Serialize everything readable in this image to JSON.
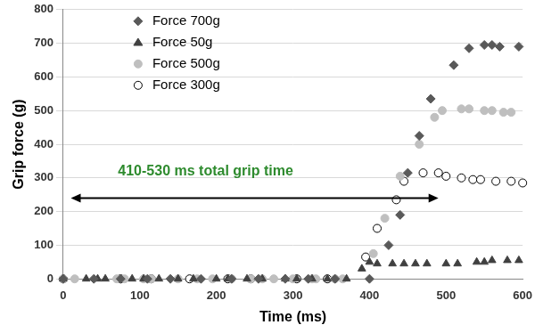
{
  "chart_data": {
    "type": "scatter",
    "x_label": "Time (ms)",
    "y_label": "Grip force (g)",
    "xlim": [
      0,
      600
    ],
    "xticks": [
      0,
      100,
      200,
      300,
      400,
      500,
      600
    ],
    "ylim": [
      0,
      800
    ],
    "yticks": [
      0,
      100,
      200,
      300,
      400,
      500,
      600,
      700,
      800
    ],
    "grid": true,
    "legend": "upper left",
    "annotations": [
      {
        "text": "410-530 ms total grip time",
        "x": [
          10,
          490
        ],
        "y": 240,
        "color": "#2e8b2e"
      }
    ],
    "series": [
      {
        "name": "Force 700g",
        "color": "#595959",
        "marker": "diamond",
        "x": [
          0,
          40,
          75,
          110,
          140,
          180,
          220,
          255,
          290,
          320,
          355,
          400,
          425,
          440,
          450,
          465,
          480,
          510,
          530,
          550,
          560,
          570,
          595
        ],
        "values": [
          0,
          0,
          0,
          0,
          0,
          0,
          0,
          0,
          0,
          0,
          0,
          0,
          100,
          190,
          315,
          425,
          535,
          635,
          685,
          695,
          695,
          690,
          690
        ]
      },
      {
        "name": "Force 50g",
        "color": "#404040",
        "marker": "triangle",
        "x": [
          0,
          30,
          45,
          55,
          90,
          105,
          125,
          150,
          170,
          200,
          215,
          240,
          260,
          290,
          305,
          325,
          345,
          370,
          390,
          400,
          410,
          430,
          445,
          460,
          475,
          500,
          515,
          540,
          550,
          560,
          580,
          595
        ],
        "values": [
          0,
          0,
          0,
          0,
          0,
          0,
          0,
          0,
          0,
          0,
          0,
          0,
          0,
          0,
          0,
          0,
          0,
          0,
          30,
          50,
          45,
          45,
          45,
          45,
          45,
          45,
          45,
          50,
          50,
          55,
          55,
          55
        ]
      },
      {
        "name": "Force 500g",
        "color": "#bfbfbf",
        "marker": "circle",
        "x": [
          0,
          15,
          70,
          80,
          105,
          115,
          150,
          175,
          195,
          220,
          245,
          260,
          275,
          300,
          325,
          330,
          355,
          365,
          405,
          420,
          440,
          465,
          485,
          495,
          520,
          530,
          550,
          560,
          575,
          585
        ],
        "values": [
          0,
          0,
          0,
          0,
          0,
          0,
          0,
          0,
          0,
          0,
          0,
          0,
          0,
          0,
          0,
          0,
          0,
          0,
          75,
          180,
          305,
          400,
          480,
          500,
          505,
          505,
          500,
          500,
          495,
          495
        ]
      },
      {
        "name": "Force 300g",
        "color": "#000000",
        "marker": "open_circle",
        "x": [
          0,
          75,
          115,
          165,
          215,
          245,
          305,
          345,
          395,
          410,
          435,
          445,
          470,
          490,
          500,
          520,
          535,
          545,
          565,
          585,
          600
        ],
        "values": [
          0,
          0,
          0,
          0,
          0,
          0,
          0,
          0,
          65,
          150,
          235,
          290,
          315,
          315,
          305,
          300,
          295,
          295,
          290,
          290,
          285
        ]
      }
    ]
  }
}
